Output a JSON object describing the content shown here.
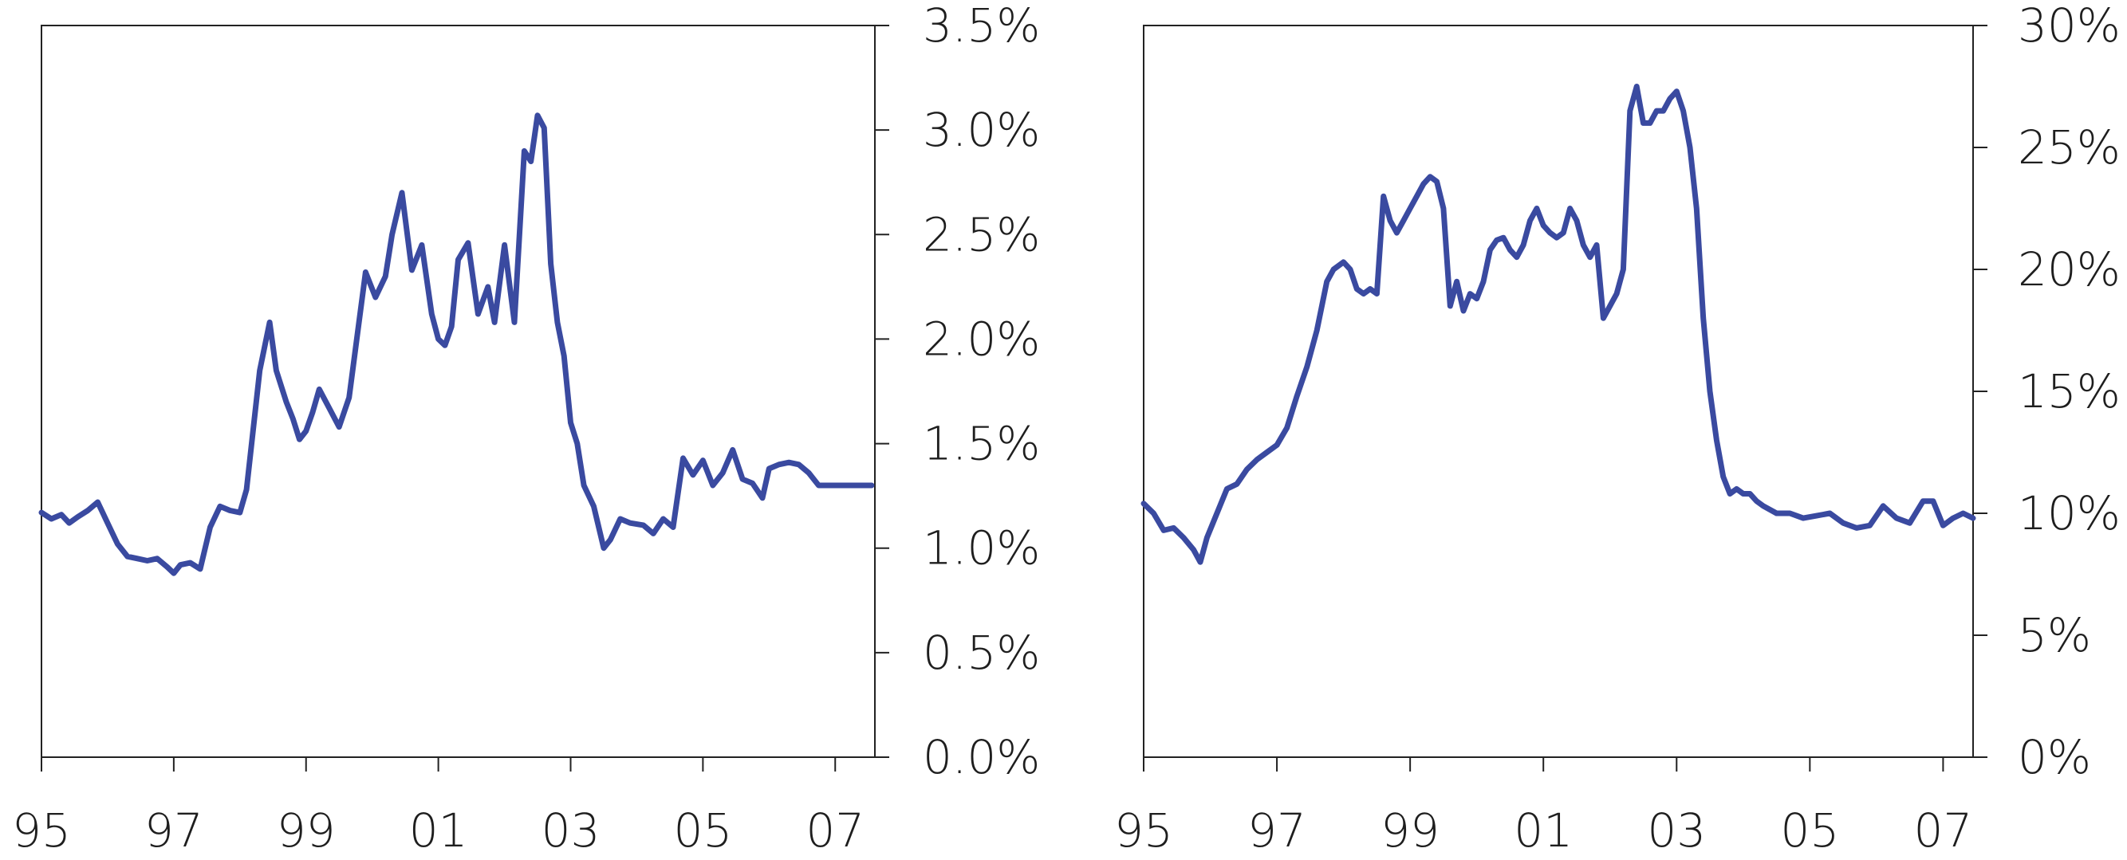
{
  "colors": {
    "series": "#3a4aa0",
    "axis": "#222222"
  },
  "chart_data": [
    {
      "type": "line",
      "title": "",
      "xlabel": "",
      "ylabel": "",
      "xlim": [
        1995.0,
        2007.6
      ],
      "ylim": [
        0.0,
        3.5
      ],
      "x_ticks": [
        1995,
        1997,
        1999,
        2001,
        2003,
        2005,
        2007
      ],
      "x_tick_labels": [
        "95",
        "97",
        "99",
        "01",
        "03",
        "05",
        "07"
      ],
      "y_ticks": [
        0.0,
        0.5,
        1.0,
        1.5,
        2.0,
        2.5,
        3.0,
        3.5
      ],
      "y_tick_labels": [
        "0.0%",
        "0.5%",
        "1.0%",
        "1.5%",
        "2.0%",
        "2.5%",
        "3.0%",
        "3.5%"
      ],
      "y_axis_side": "right",
      "grid": false,
      "series": [
        {
          "x": [
            1995.0,
            1995.15,
            1995.3,
            1995.42,
            1995.55,
            1995.7,
            1995.85,
            1996.0,
            1996.15,
            1996.3,
            1996.45,
            1996.6,
            1996.75,
            1996.9,
            1997.0,
            1997.1,
            1997.25,
            1997.4,
            1997.55,
            1997.7,
            1997.85,
            1998.0,
            1998.1,
            1998.3,
            1998.45,
            1998.55,
            1998.7,
            1998.8,
            1998.9,
            1999.0,
            1999.1,
            1999.2,
            1999.35,
            1999.5,
            1999.65,
            1999.8,
            1999.9,
            2000.05,
            2000.2,
            2000.3,
            2000.45,
            2000.6,
            2000.75,
            2000.9,
            2001.0,
            2001.1,
            2001.2,
            2001.3,
            2001.45,
            2001.6,
            2001.75,
            2001.85,
            2002.0,
            2002.15,
            2002.3,
            2002.4,
            2002.5,
            2002.6,
            2002.7,
            2002.8,
            2002.9,
            2003.0,
            2003.1,
            2003.2,
            2003.35,
            2003.5,
            2003.6,
            2003.75,
            2003.9,
            2004.1,
            2004.25,
            2004.4,
            2004.55,
            2004.7,
            2004.85,
            2005.0,
            2005.15,
            2005.3,
            2005.45,
            2005.6,
            2005.75,
            2005.9,
            2006.0,
            2006.15,
            2006.3,
            2006.45,
            2006.6,
            2006.75,
            2006.9,
            2007.0,
            2007.15,
            2007.3,
            2007.45,
            2007.55
          ],
          "y": [
            1.17,
            1.14,
            1.16,
            1.12,
            1.15,
            1.18,
            1.22,
            1.12,
            1.02,
            0.96,
            0.95,
            0.94,
            0.95,
            0.91,
            0.88,
            0.92,
            0.93,
            0.9,
            1.1,
            1.2,
            1.18,
            1.17,
            1.28,
            1.85,
            2.08,
            1.85,
            1.7,
            1.62,
            1.52,
            1.56,
            1.65,
            1.76,
            1.67,
            1.58,
            1.72,
            2.08,
            2.32,
            2.2,
            2.3,
            2.5,
            2.7,
            2.33,
            2.45,
            2.12,
            2.0,
            1.97,
            2.06,
            2.38,
            2.46,
            2.12,
            2.25,
            2.08,
            2.45,
            2.08,
            2.9,
            2.85,
            3.07,
            3.01,
            2.36,
            2.08,
            1.92,
            1.6,
            1.5,
            1.3,
            1.2,
            1.0,
            1.04,
            1.14,
            1.12,
            1.11,
            1.07,
            1.14,
            1.1,
            1.43,
            1.35,
            1.42,
            1.3,
            1.36,
            1.47,
            1.33,
            1.31,
            1.24,
            1.38,
            1.4,
            1.41,
            1.4,
            1.36,
            1.3,
            1.3,
            1.3,
            1.3,
            1.3,
            1.3,
            1.3
          ]
        }
      ]
    },
    {
      "type": "line",
      "title": "",
      "xlabel": "",
      "ylabel": "",
      "xlim": [
        1995.0,
        2007.45
      ],
      "ylim": [
        0,
        30
      ],
      "x_ticks": [
        1995,
        1997,
        1999,
        2001,
        2003,
        2005,
        2007
      ],
      "x_tick_labels": [
        "95",
        "97",
        "99",
        "01",
        "03",
        "05",
        "07"
      ],
      "y_ticks": [
        0,
        5,
        10,
        15,
        20,
        25,
        30
      ],
      "y_tick_labels": [
        "0%",
        "5%",
        "10%",
        "15%",
        "20%",
        "25%",
        "30%"
      ],
      "y_axis_side": "right",
      "grid": false,
      "series": [
        {
          "x": [
            1995.0,
            1995.15,
            1995.3,
            1995.45,
            1995.6,
            1995.75,
            1995.85,
            1995.95,
            1996.1,
            1996.25,
            1996.4,
            1996.55,
            1996.7,
            1996.85,
            1997.0,
            1997.15,
            1997.3,
            1997.45,
            1997.6,
            1997.75,
            1997.85,
            1998.0,
            1998.1,
            1998.2,
            1998.3,
            1998.4,
            1998.5,
            1998.6,
            1998.7,
            1998.8,
            1998.9,
            1999.0,
            1999.1,
            1999.2,
            1999.3,
            1999.4,
            1999.5,
            1999.6,
            1999.7,
            1999.8,
            1999.9,
            2000.0,
            2000.1,
            2000.2,
            2000.3,
            2000.4,
            2000.5,
            2000.6,
            2000.7,
            2000.8,
            2000.9,
            2001.0,
            2001.1,
            2001.2,
            2001.3,
            2001.4,
            2001.5,
            2001.6,
            2001.7,
            2001.8,
            2001.9,
            2002.0,
            2002.1,
            2002.2,
            2002.3,
            2002.4,
            2002.5,
            2002.6,
            2002.7,
            2002.8,
            2002.9,
            2003.0,
            2003.1,
            2003.2,
            2003.3,
            2003.4,
            2003.5,
            2003.6,
            2003.7,
            2003.8,
            2003.9,
            2004.0,
            2004.1,
            2004.2,
            2004.3,
            2004.5,
            2004.7,
            2004.9,
            2005.1,
            2005.3,
            2005.5,
            2005.7,
            2005.9,
            2006.1,
            2006.3,
            2006.5,
            2006.7,
            2006.85,
            2007.0,
            2007.15,
            2007.3,
            2007.45
          ],
          "y": [
            10.4,
            10.0,
            9.3,
            9.4,
            9.0,
            8.5,
            8.0,
            9.0,
            10.0,
            11.0,
            11.2,
            11.8,
            12.2,
            12.5,
            12.8,
            13.5,
            14.8,
            16.0,
            17.5,
            19.5,
            20.0,
            20.3,
            20.0,
            19.2,
            19.0,
            19.2,
            19.0,
            23.0,
            22.0,
            21.5,
            22.0,
            22.5,
            23.0,
            23.5,
            23.8,
            23.6,
            22.5,
            18.5,
            19.5,
            18.3,
            19.0,
            18.8,
            19.5,
            20.8,
            21.2,
            21.3,
            20.8,
            20.5,
            21.0,
            22.0,
            22.5,
            21.8,
            21.5,
            21.3,
            21.5,
            22.5,
            22.0,
            21.0,
            20.5,
            21.0,
            18.0,
            18.5,
            19.0,
            20.0,
            26.5,
            27.5,
            26.0,
            26.0,
            26.5,
            26.5,
            27.0,
            27.3,
            26.5,
            25.0,
            22.5,
            18.0,
            15.0,
            13.0,
            11.5,
            10.8,
            11.0,
            10.8,
            10.8,
            10.5,
            10.3,
            10.0,
            10.0,
            9.8,
            9.9,
            10.0,
            9.6,
            9.4,
            9.5,
            10.3,
            9.8,
            9.6,
            10.5,
            10.5,
            9.5,
            9.8,
            10.0,
            9.8
          ]
        }
      ]
    }
  ]
}
